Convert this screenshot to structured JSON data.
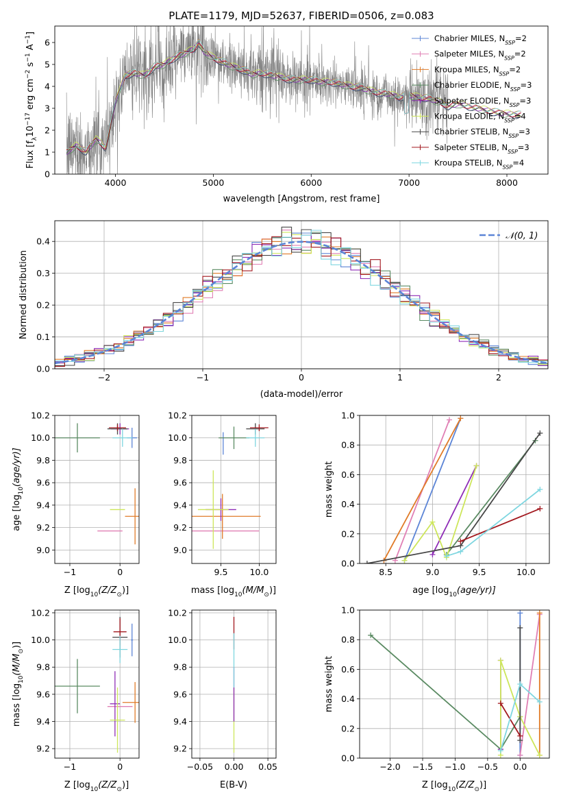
{
  "figure": {
    "title": "PLATE=1179, MJD=52637, FIBERID=0506, z=0.083"
  },
  "models": [
    {
      "name": "Chabrier MILES",
      "nssp": "2",
      "color": "#5b84d6"
    },
    {
      "name": "Salpeter MILES",
      "nssp": "2",
      "color": "#e07fb4"
    },
    {
      "name": "Kroupa MILES",
      "nssp": "2",
      "color": "#e07a26"
    },
    {
      "name": "Chabrier ELODIE",
      "nssp": "3",
      "color": "#5a8a62"
    },
    {
      "name": "Salpeter ELODIE",
      "nssp": "3",
      "color": "#8e2bb6"
    },
    {
      "name": "Kroupa ELODIE",
      "nssp": "4",
      "color": "#cde65a"
    },
    {
      "name": "Chabrier STELIB",
      "nssp": "3",
      "color": "#474747"
    },
    {
      "name": "Salpeter STELIB",
      "nssp": "3",
      "color": "#a1161c"
    },
    {
      "name": "Kroupa STELIB",
      "nssp": "4",
      "color": "#7ed6e0"
    }
  ],
  "chart_data": [
    {
      "id": "spectrum",
      "type": "line",
      "xlabel": "wavelength [Angstrom, rest frame]",
      "ylabel_main": "Flux [f",
      "ylabel_sub": "λ",
      "ylabel_tail": "10",
      "ylabel_sup1": "−17",
      "ylabel_mid": " erg cm",
      "ylabel_sup2": "−2",
      "ylabel_mid2": " s",
      "ylabel_sup3": "−1",
      "ylabel_end": " A",
      "ylabel_sup4": "−1",
      "ylabel_close": "]",
      "xlim": [
        3380,
        8420
      ],
      "ylim": [
        0,
        6.75
      ],
      "xticks": [
        4000,
        5000,
        6000,
        7000,
        8000
      ],
      "yticks": [
        0,
        1,
        2,
        3,
        4,
        5,
        6
      ],
      "data_color": "#808080",
      "continuum": {
        "x": [
          3500,
          3600,
          3700,
          3800,
          3900,
          3950,
          4000,
          4050,
          4100,
          4200,
          4300,
          4400,
          4500,
          4600,
          4700,
          4800,
          4850,
          4900,
          5000,
          5100,
          5200,
          5300,
          5400,
          5500,
          5600,
          5700,
          5800,
          5900,
          6000,
          6100,
          6200,
          6300,
          6400,
          6500,
          6600,
          6700,
          6800,
          6900,
          7000,
          7100,
          7200,
          7300,
          7400,
          7500,
          7600,
          7700,
          7800,
          7900,
          8000,
          8100,
          8150
        ],
        "y": [
          1.0,
          1.3,
          1.0,
          1.6,
          1.2,
          2.2,
          3.3,
          3.9,
          4.5,
          4.6,
          4.5,
          4.9,
          5.0,
          5.3,
          5.5,
          5.7,
          6.0,
          5.6,
          5.3,
          5.1,
          4.9,
          4.75,
          4.55,
          4.6,
          4.5,
          4.4,
          4.3,
          4.3,
          4.3,
          4.2,
          4.2,
          4.1,
          4.0,
          3.95,
          3.8,
          3.7,
          3.65,
          3.5,
          3.6,
          3.5,
          3.45,
          3.3,
          3.1,
          3.2,
          3.1,
          3.0,
          2.9,
          2.8,
          2.75,
          2.7,
          2.7
        ]
      }
    },
    {
      "id": "residuals",
      "type": "histogram",
      "xlabel": "(data-model)/error",
      "ylabel": "Normed distribution",
      "xlim": [
        -2.5,
        2.5
      ],
      "ylim": [
        0,
        0.465
      ],
      "xticks": [
        -2,
        -1,
        0,
        1,
        2
      ],
      "yticks": [
        0.0,
        0.1,
        0.2,
        0.3,
        0.4
      ],
      "reference_label": "𝒩(0, 1)",
      "reference_color": "#5b84d6"
    },
    {
      "id": "Z-age",
      "type": "errorbar",
      "xlabel": "Z [log",
      "xlabel_sub": "10",
      "xlabel_tail": "(Z/Z",
      "xlabel_sub2": "⊙",
      "xlabel_end": ")]",
      "ylabel": "age  [log",
      "ylabel_sub": "10",
      "ylabel_tail": "(age/yr)]",
      "xlim": [
        -1.3,
        0.38
      ],
      "ylim": [
        8.88,
        10.2
      ],
      "xticks": [
        -1,
        0
      ],
      "yticks": [
        9.0,
        9.2,
        9.4,
        9.6,
        9.8,
        10.0,
        10.2
      ],
      "points": [
        {
          "m": 0,
          "x": 0.24,
          "y": 10.0,
          "xerr": 0.1,
          "yerr": 0.09
        },
        {
          "m": 1,
          "x": -0.2,
          "y": 9.17,
          "xerr": 0.25,
          "yerr": 0.0
        },
        {
          "m": 2,
          "x": 0.3,
          "y": 9.3,
          "xerr": 0.2,
          "yerr": 0.25
        },
        {
          "m": 3,
          "x": -0.85,
          "y": 10.0,
          "xerr": 0.45,
          "yerr": 0.13
        },
        {
          "m": 4,
          "x": 0.0,
          "y": 10.08,
          "xerr": 0.18,
          "yerr": 0.05
        },
        {
          "m": 5,
          "x": -0.05,
          "y": 9.36,
          "xerr": 0.15,
          "yerr": 0.0
        },
        {
          "m": 6,
          "x": -0.05,
          "y": 10.08,
          "xerr": 0.2,
          "yerr": 0.05
        },
        {
          "m": 7,
          "x": -0.05,
          "y": 10.09,
          "xerr": 0.17,
          "yerr": 0.03
        },
        {
          "m": 8,
          "x": 0.05,
          "y": 10.0,
          "xerr": 0.2,
          "yerr": 0.08
        }
      ]
    },
    {
      "id": "mass-age",
      "type": "errorbar",
      "xlabel": "mass [log",
      "xlabel_sub": "10",
      "xlabel_tail": "(M/M",
      "xlabel_sub2": "⊙",
      "xlabel_end": ")]",
      "xlim": [
        9.12,
        10.22
      ],
      "ylim": [
        8.88,
        10.2
      ],
      "xticks": [
        9.5,
        10.0
      ],
      "yticks": [
        9.0,
        9.2,
        9.4,
        9.6,
        9.8,
        10.0,
        10.2
      ],
      "points": [
        {
          "m": 0,
          "x": 9.53,
          "y": 9.95,
          "xerr": 0.0,
          "yerr": 0.1
        },
        {
          "m": 1,
          "x": 9.55,
          "y": 9.17,
          "xerr": 0.45,
          "yerr": 0.0
        },
        {
          "m": 2,
          "x": 9.52,
          "y": 9.3,
          "xerr": 0.5,
          "yerr": 0.2
        },
        {
          "m": 3,
          "x": 9.67,
          "y": 10.0,
          "xerr": 0.2,
          "yerr": 0.1
        },
        {
          "m": 4,
          "x": 9.5,
          "y": 9.36,
          "xerr": 0.2,
          "yerr": 0.1
        },
        {
          "m": 5,
          "x": 9.4,
          "y": 9.36,
          "xerr": 0.2,
          "yerr": 0.35
        },
        {
          "m": 6,
          "x": 9.95,
          "y": 10.08,
          "xerr": 0.12,
          "yerr": 0.05
        },
        {
          "m": 7,
          "x": 10.0,
          "y": 10.09,
          "xerr": 0.12,
          "yerr": 0.03
        },
        {
          "m": 8,
          "x": 9.95,
          "y": 10.0,
          "xerr": 0.12,
          "yerr": 0.08
        }
      ]
    },
    {
      "id": "age-weight",
      "type": "line",
      "xlabel": "age  [log",
      "xlabel_sub": "10",
      "xlabel_tail": "(age/yr)]",
      "ylabel": "mass weight",
      "xlim": [
        8.22,
        10.25
      ],
      "ylim": [
        0,
        1.0
      ],
      "xticks": [
        8.5,
        9.0,
        9.5,
        10.0
      ],
      "yticks": [
        0.0,
        0.2,
        0.4,
        0.6,
        0.8,
        1.0
      ],
      "series": [
        {
          "m": 0,
          "x": [
            8.7,
            9.3
          ],
          "y": [
            0.02,
            0.98
          ]
        },
        {
          "m": 1,
          "x": [
            8.6,
            9.18
          ],
          "y": [
            0.02,
            0.97
          ]
        },
        {
          "m": 2,
          "x": [
            8.48,
            9.3
          ],
          "y": [
            0.02,
            0.98
          ]
        },
        {
          "m": 3,
          "x": [
            9.15,
            10.1
          ],
          "y": [
            0.06,
            0.83
          ]
        },
        {
          "m": 4,
          "x": [
            9.0,
            9.47
          ],
          "y": [
            0.06,
            0.66
          ]
        },
        {
          "m": 5,
          "x": [
            8.7,
            9.0,
            9.15,
            9.47
          ],
          "y": [
            0.02,
            0.28,
            0.04,
            0.66
          ]
        },
        {
          "m": 6,
          "x": [
            8.3,
            9.3,
            10.15
          ],
          "y": [
            0.0,
            0.12,
            0.88
          ]
        },
        {
          "m": 7,
          "x": [
            9.3,
            10.15
          ],
          "y": [
            0.15,
            0.37
          ]
        },
        {
          "m": 8,
          "x": [
            9.15,
            9.3,
            10.15
          ],
          "y": [
            0.05,
            0.08,
            0.5
          ]
        }
      ]
    },
    {
      "id": "Z-mass",
      "type": "errorbar",
      "xlabel": "Z [log",
      "xlabel_sub": "10",
      "xlabel_tail": "(Z/Z",
      "xlabel_sub2": "⊙",
      "xlabel_end": ")]",
      "ylabel": "mass [log",
      "ylabel_sub": "10",
      "ylabel_tail": "(M/M",
      "ylabel_sub2": "⊙",
      "ylabel_end": ")]",
      "xlim": [
        -1.3,
        0.38
      ],
      "ylim": [
        9.13,
        10.22
      ],
      "xticks": [
        -1,
        0
      ],
      "yticks": [
        9.2,
        9.4,
        9.6,
        9.8,
        10.0,
        10.2
      ],
      "points": [
        {
          "m": 0,
          "x": 0.24,
          "y": 10.0,
          "xerr": 0.02,
          "yerr": 0.12
        },
        {
          "m": 1,
          "x": 0.0,
          "y": 9.51,
          "xerr": 0.25,
          "yerr": 0.0
        },
        {
          "m": 2,
          "x": 0.3,
          "y": 9.54,
          "xerr": 0.25,
          "yerr": 0.15
        },
        {
          "m": 3,
          "x": -0.85,
          "y": 9.66,
          "xerr": 0.45,
          "yerr": 0.2
        },
        {
          "m": 4,
          "x": -0.1,
          "y": 9.53,
          "xerr": 0.1,
          "yerr": 0.24
        },
        {
          "m": 5,
          "x": -0.05,
          "y": 9.41,
          "xerr": 0.15,
          "yerr": 0.24
        },
        {
          "m": 6,
          "x": 0.0,
          "y": 10.02,
          "xerr": 0.15,
          "yerr": 0.15
        },
        {
          "m": 7,
          "x": 0.0,
          "y": 10.06,
          "xerr": 0.13,
          "yerr": 0.1
        },
        {
          "m": 8,
          "x": 0.0,
          "y": 9.93,
          "xerr": 0.15,
          "yerr": 0.1
        }
      ]
    },
    {
      "id": "EBV-mass",
      "type": "errorbar",
      "xlabel": "E(B-V)",
      "xlim": [
        -0.062,
        0.062
      ],
      "ylim": [
        9.13,
        10.22
      ],
      "xticks": [
        -0.05,
        0.0,
        0.05
      ],
      "yticks": [
        9.2,
        9.4,
        9.6,
        9.8,
        10.0,
        10.2
      ],
      "points": [
        {
          "m": 5,
          "x": 0.0,
          "y": 9.41,
          "xerr": 0.0,
          "yerr": 0.24
        },
        {
          "m": 4,
          "x": 0.0,
          "y": 9.6,
          "xerr": 0.0,
          "yerr": 0.2
        },
        {
          "m": 7,
          "x": 0.0,
          "y": 10.05,
          "xerr": 0.0,
          "yerr": 0.12
        },
        {
          "m": 8,
          "x": 0.0,
          "y": 9.85,
          "xerr": 0.0,
          "yerr": 0.2
        }
      ]
    },
    {
      "id": "Zmet-weight",
      "type": "line",
      "xlabel": "Z [log",
      "xlabel_sub": "10",
      "xlabel_tail": "(Z/Z",
      "xlabel_sub2": "⊙",
      "xlabel_end": ")]",
      "ylabel": "mass weight",
      "xlim": [
        -2.47,
        0.45
      ],
      "ylim": [
        0,
        1.0
      ],
      "xticks": [
        -2.0,
        -1.5,
        -1.0,
        -0.5,
        0.0
      ],
      "yticks": [
        0.0,
        0.2,
        0.4,
        0.6,
        0.8,
        1.0
      ],
      "series": [
        {
          "m": 0,
          "x": [
            0.0,
            0.0
          ],
          "y": [
            0.02,
            0.98
          ]
        },
        {
          "m": 1,
          "x": [
            0.0,
            0.3
          ],
          "y": [
            0.02,
            0.97
          ]
        },
        {
          "m": 2,
          "x": [
            0.3,
            0.3
          ],
          "y": [
            0.02,
            0.98
          ]
        },
        {
          "m": 3,
          "x": [
            -2.3,
            -0.3,
            0.0
          ],
          "y": [
            0.83,
            0.06,
            0.28
          ]
        },
        {
          "m": 4,
          "x": [
            -0.3,
            -0.3
          ],
          "y": [
            0.06,
            0.66
          ]
        },
        {
          "m": 5,
          "x": [
            -0.3,
            -0.3,
            0.0,
            0.3
          ],
          "y": [
            0.02,
            0.66,
            0.28,
            0.02
          ]
        },
        {
          "m": 6,
          "x": [
            0.0,
            0.0
          ],
          "y": [
            0.12,
            0.88
          ]
        },
        {
          "m": 7,
          "x": [
            -0.3,
            0.0
          ],
          "y": [
            0.37,
            0.15
          ]
        },
        {
          "m": 8,
          "x": [
            -0.3,
            0.0,
            0.3
          ],
          "y": [
            0.05,
            0.5,
            0.38
          ]
        }
      ]
    }
  ]
}
